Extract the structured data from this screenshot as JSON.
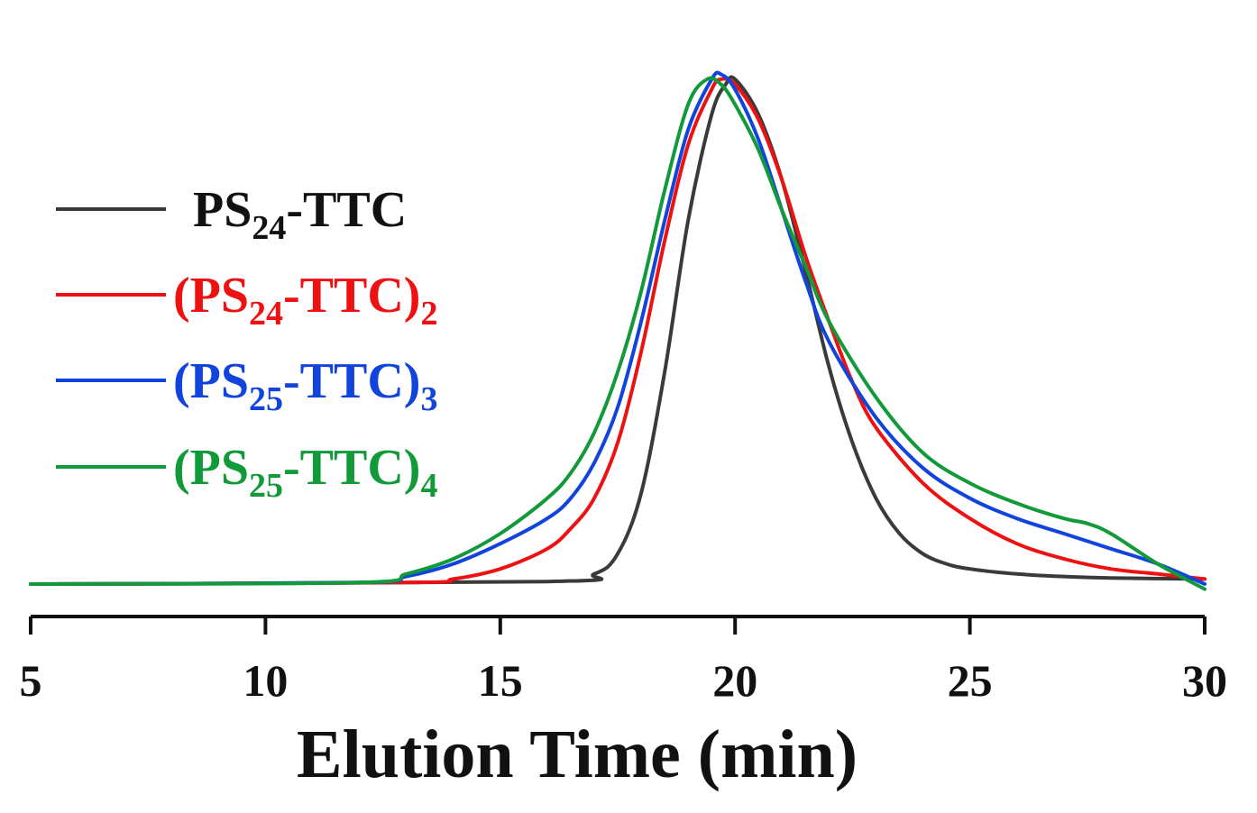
{
  "chart_data": {
    "type": "line",
    "title": "",
    "xlabel": "Elution Time (min)",
    "ylabel": "",
    "xlim": [
      5,
      30
    ],
    "ylim": [
      0,
      1.05
    ],
    "xticks": [
      "5",
      "10",
      "15",
      "20",
      "25",
      "30"
    ],
    "grid": false,
    "legend_position": "left",
    "series": [
      {
        "name": "PS24-TTC",
        "label_parts": [
          "PS",
          "24",
          "-TTC",
          ""
        ],
        "color": "#3a3a3a",
        "x": [
          5,
          16,
          17,
          17.5,
          18,
          18.5,
          19,
          19.5,
          19.8,
          20,
          20.5,
          21,
          21.5,
          22,
          22.5,
          23,
          23.5,
          24,
          24.5,
          25,
          26,
          27,
          28,
          30
        ],
        "y": [
          0,
          0.005,
          0.02,
          0.06,
          0.18,
          0.42,
          0.72,
          0.93,
          0.99,
          1.0,
          0.93,
          0.8,
          0.62,
          0.43,
          0.28,
          0.17,
          0.1,
          0.06,
          0.04,
          0.03,
          0.02,
          0.015,
          0.012,
          0.01
        ]
      },
      {
        "name": "(PS24-TTC)2",
        "label_parts": [
          "(PS",
          "24",
          "-TTC)",
          "2"
        ],
        "color": "#ee1111",
        "x": [
          5,
          13,
          14,
          15,
          16,
          16.5,
          17,
          17.5,
          18,
          18.5,
          19,
          19.5,
          19.7,
          20,
          20.5,
          21,
          21.5,
          22,
          22.5,
          23,
          24,
          25,
          26,
          27,
          28,
          29,
          30
        ],
        "y": [
          0,
          0.003,
          0.01,
          0.03,
          0.07,
          0.11,
          0.17,
          0.28,
          0.46,
          0.68,
          0.87,
          0.98,
          1.0,
          0.99,
          0.92,
          0.8,
          0.65,
          0.52,
          0.4,
          0.31,
          0.2,
          0.13,
          0.08,
          0.05,
          0.03,
          0.02,
          0.01
        ]
      },
      {
        "name": "(PS25-TTC)3",
        "label_parts": [
          "(PS",
          "25",
          "-TTC)",
          "3"
        ],
        "color": "#1144dd",
        "x": [
          5,
          12,
          13,
          14,
          15,
          16,
          16.5,
          17,
          17.5,
          18,
          18.5,
          19,
          19.5,
          19.7,
          20,
          20.5,
          21,
          21.5,
          22,
          23,
          24,
          25,
          26,
          27,
          28,
          29,
          30
        ],
        "y": [
          0,
          0.003,
          0.015,
          0.04,
          0.08,
          0.13,
          0.17,
          0.24,
          0.35,
          0.52,
          0.72,
          0.9,
          1.0,
          1.01,
          0.98,
          0.88,
          0.74,
          0.6,
          0.48,
          0.33,
          0.23,
          0.17,
          0.13,
          0.1,
          0.07,
          0.04,
          0.0
        ]
      },
      {
        "name": "(PS25-TTC)4",
        "label_parts": [
          "(PS",
          "25",
          "-TTC)",
          "4"
        ],
        "color": "#129a3a",
        "x": [
          5,
          12,
          13,
          14,
          15,
          16,
          16.5,
          17,
          17.5,
          18,
          18.5,
          19,
          19.4,
          19.7,
          20,
          20.5,
          21,
          21.5,
          22,
          23,
          24,
          25,
          26,
          27,
          27.5,
          28,
          29,
          30
        ],
        "y": [
          0,
          0.003,
          0.02,
          0.05,
          0.1,
          0.17,
          0.22,
          0.3,
          0.42,
          0.58,
          0.78,
          0.95,
          1.0,
          0.99,
          0.95,
          0.86,
          0.74,
          0.63,
          0.52,
          0.37,
          0.26,
          0.2,
          0.16,
          0.13,
          0.12,
          0.1,
          0.04,
          -0.01
        ]
      }
    ]
  }
}
